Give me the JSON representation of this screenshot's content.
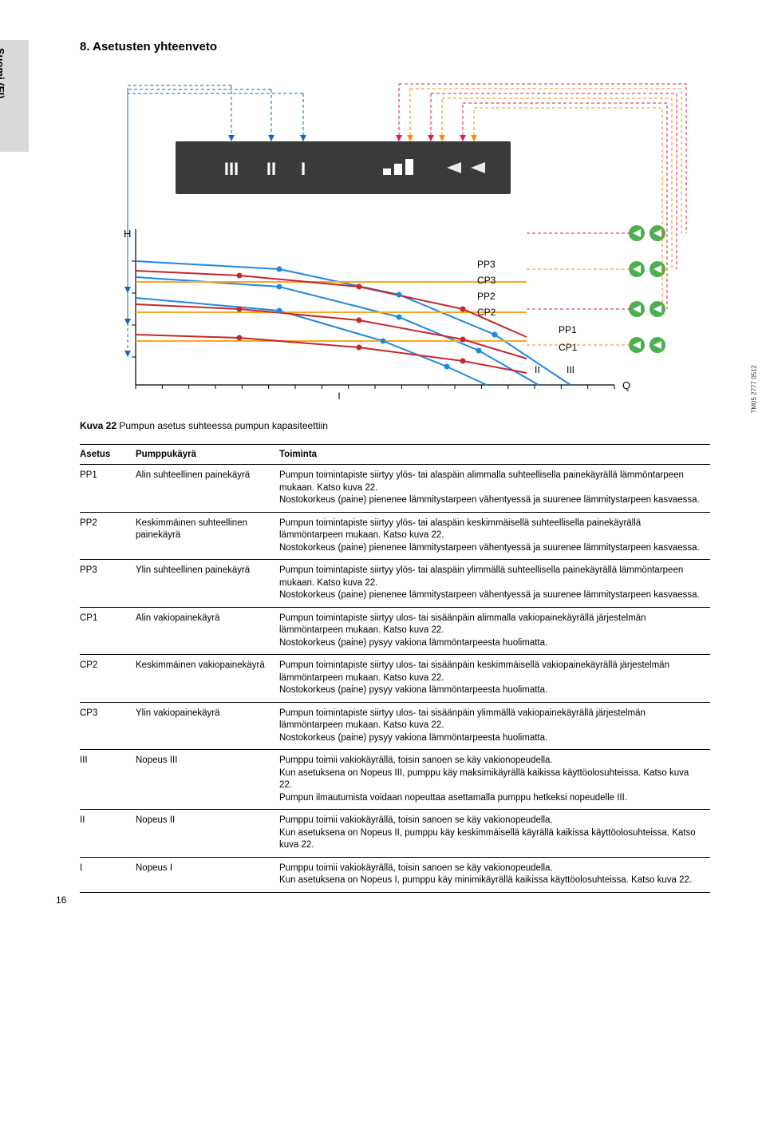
{
  "side_label": "Suomi (FI)",
  "section_title": "8. Asetusten yhteenveto",
  "figure": {
    "caption_prefix": "Kuva 22",
    "caption_text": "Pumpun asetus suhteessa pumpun kapasiteettiin",
    "img_code": "TM05 2777 0512",
    "panel_labels": [
      "III",
      "II",
      "I"
    ],
    "axis_y": "H",
    "axis_x": "Q",
    "curve_labels_stack": [
      "PP3",
      "CP3",
      "PP2",
      "CP2"
    ],
    "curve_labels_right": [
      "PP1",
      "CP1"
    ],
    "x_labels": [
      "I",
      "II",
      "III"
    ],
    "colors": {
      "pp_line": "#c62828",
      "cp_line": "#f9a825",
      "blue_line": "#1e88e5",
      "pp_dash": "#d81b60",
      "cp_dash": "#fb8c00",
      "green": "#4caf50",
      "panel": "#3a3a3a",
      "axis": "#000",
      "blue_dash": "#1565c0"
    },
    "curves": {
      "PP3": {
        "color": "#c62828",
        "points": [
          [
            70,
            252
          ],
          [
            200,
            258
          ],
          [
            350,
            272
          ],
          [
            480,
            300
          ],
          [
            560,
            335
          ]
        ]
      },
      "PP2": {
        "color": "#c62828",
        "points": [
          [
            70,
            294
          ],
          [
            200,
            300
          ],
          [
            350,
            314
          ],
          [
            480,
            338
          ],
          [
            560,
            362
          ]
        ]
      },
      "PP1": {
        "color": "#c62828",
        "points": [
          [
            70,
            332
          ],
          [
            200,
            336
          ],
          [
            350,
            348
          ],
          [
            480,
            365
          ],
          [
            560,
            380
          ]
        ]
      },
      "CP3": {
        "color": "#f9a825",
        "points": [
          [
            70,
            266
          ],
          [
            560,
            266
          ]
        ]
      },
      "CP2": {
        "color": "#f9a825",
        "points": [
          [
            70,
            304
          ],
          [
            560,
            304
          ]
        ]
      },
      "CP1": {
        "color": "#f9a825",
        "points": [
          [
            70,
            340
          ],
          [
            560,
            340
          ]
        ]
      },
      "blue_III": {
        "color": "#1e88e5",
        "points": [
          [
            70,
            240
          ],
          [
            250,
            250
          ],
          [
            400,
            282
          ],
          [
            520,
            332
          ],
          [
            615,
            395
          ]
        ]
      },
      "blue_II": {
        "color": "#1e88e5",
        "points": [
          [
            70,
            260
          ],
          [
            250,
            272
          ],
          [
            400,
            310
          ],
          [
            500,
            352
          ],
          [
            575,
            395
          ]
        ]
      },
      "blue_I": {
        "color": "#1e88e5",
        "points": [
          [
            70,
            286
          ],
          [
            250,
            302
          ],
          [
            380,
            340
          ],
          [
            460,
            372
          ],
          [
            510,
            395
          ]
        ]
      }
    }
  },
  "table": {
    "headers": [
      "Asetus",
      "Pumppukäyrä",
      "Toiminta"
    ],
    "rows": [
      {
        "setting": "PP1",
        "curve": "Alin suhteellinen painekäyrä",
        "desc": "Pumpun toimintapiste siirtyy ylös- tai alaspäin alimmalla suhteellisella painekäyrällä lämmöntarpeen mukaan. Katso kuva 22.\nNostokorkeus (paine) pienenee lämmitystarpeen vähentyessä ja suurenee lämmitystarpeen kasvaessa."
      },
      {
        "setting": "PP2",
        "curve": "Keskimmäinen suhteellinen painekäyrä",
        "desc": "Pumpun toimintapiste siirtyy ylös- tai alaspäin keskimmäisellä suhteellisella painekäyrällä lämmöntarpeen mukaan. Katso kuva 22.\nNostokorkeus (paine) pienenee lämmitystarpeen vähentyessä ja suurenee lämmitystarpeen kasvaessa."
      },
      {
        "setting": "PP3",
        "curve": "Ylin suhteellinen painekäyrä",
        "desc": "Pumpun toimintapiste siirtyy ylös- tai alaspäin ylimmällä suhteellisella painekäyrällä lämmöntarpeen mukaan. Katso kuva 22.\nNostokorkeus (paine) pienenee lämmitystarpeen vähentyessä ja suurenee lämmitystarpeen kasvaessa."
      },
      {
        "setting": "CP1",
        "curve": "Alin vakiopainekäyrä",
        "desc": "Pumpun toimintapiste siirtyy ulos- tai sisäänpäin alimmalla vakiopainekäyrällä järjestelmän lämmöntarpeen mukaan. Katso kuva 22.\nNostokorkeus (paine) pysyy vakiona lämmöntarpeesta huolimatta."
      },
      {
        "setting": "CP2",
        "curve": "Keskimmäinen vakiopainekäyrä",
        "desc": "Pumpun toimintapiste siirtyy ulos- tai sisäänpäin keskimmäisellä vakiopainekäyrällä järjestelmän lämmöntarpeen mukaan. Katso kuva 22.\nNostokorkeus (paine) pysyy vakiona lämmöntarpeesta huolimatta."
      },
      {
        "setting": "CP3",
        "curve": "Ylin vakiopainekäyrä",
        "desc": "Pumpun toimintapiste siirtyy ulos- tai sisäänpäin ylimmällä vakiopainekäyrällä järjestelmän lämmöntarpeen mukaan. Katso kuva 22.\nNostokorkeus (paine) pysyy vakiona lämmöntarpeesta huolimatta."
      },
      {
        "setting": "III",
        "curve": "Nopeus III",
        "desc": "Pumppu toimii vakiokäyrällä, toisin sanoen se käy vakionopeudella.\nKun asetuksena on Nopeus III, pumppu käy maksimikäyrällä kaikissa käyttöolosuhteissa. Katso kuva 22.\nPumpun ilmautumista voidaan nopeuttaa asettamalla pumppu hetkeksi nopeudelle III."
      },
      {
        "setting": "II",
        "curve": "Nopeus II",
        "desc": "Pumppu toimii vakiokäyrällä, toisin sanoen se käy vakionopeudella.\nKun asetuksena on Nopeus II, pumppu käy keskimmäisellä käyrällä kaikissa käyttöolosuhteissa. Katso kuva 22."
      },
      {
        "setting": "I",
        "curve": "Nopeus I",
        "desc": "Pumppu toimii vakiokäyrällä, toisin sanoen se käy vakionopeudella.\nKun asetuksena on Nopeus I, pumppu käy minimikäyrällä kaikissa käyttöolosuhteissa. Katso kuva 22."
      }
    ]
  },
  "page_number": "16"
}
